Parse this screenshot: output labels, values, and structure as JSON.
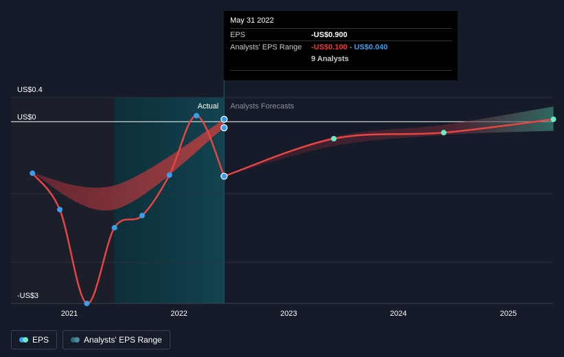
{
  "chart_data": {
    "type": "line",
    "title": "",
    "xlabel": "",
    "ylabel": "",
    "y_axis_labels": [
      "US$0.4",
      "US$0",
      "-US$3"
    ],
    "x_tick_labels": [
      "2021",
      "2022",
      "2023",
      "2024",
      "2025"
    ],
    "ylim": [
      -3.0,
      0.4
    ],
    "section_labels": {
      "actual": "Actual",
      "forecast": "Analysts Forecasts"
    },
    "series": [
      {
        "name": "EPS",
        "actual_points": [
          {
            "x": "2020-08-31",
            "y": -0.85
          },
          {
            "x": "2020-11-30",
            "y": -1.45
          },
          {
            "x": "2021-02-28",
            "y": -3.0
          },
          {
            "x": "2021-05-31",
            "y": -1.75
          },
          {
            "x": "2021-08-31",
            "y": -1.55
          },
          {
            "x": "2021-11-30",
            "y": -0.88
          },
          {
            "x": "2022-02-28",
            "y": 0.1
          },
          {
            "x": "2022-05-31",
            "y": -0.9
          }
        ],
        "forecast_points": [
          {
            "x": "2023-05-31",
            "y": -0.28
          },
          {
            "x": "2024-05-31",
            "y": -0.18
          },
          {
            "x": "2025-05-31",
            "y": 0.04
          }
        ]
      },
      {
        "name": "Analysts' EPS Range",
        "actual_range": [
          {
            "x": "2020-08-31",
            "low": -0.85,
            "high": -0.85
          },
          {
            "x": "2021-05-31",
            "low": -1.45,
            "high": -1.05
          },
          {
            "x": "2022-05-31",
            "low": -0.1,
            "high": 0.04
          }
        ],
        "forecast_range": [
          {
            "x": "2022-05-31",
            "low": -0.9,
            "high": -0.9
          },
          {
            "x": "2023-05-31",
            "low": -0.4,
            "high": -0.25
          },
          {
            "x": "2024-05-31",
            "low": -0.22,
            "high": -0.05
          },
          {
            "x": "2025-05-31",
            "low": -0.15,
            "high": 0.25
          }
        ]
      }
    ],
    "tooltip": {
      "date": "May 31 2022",
      "eps_label": "EPS",
      "eps_value": "-US$0.900",
      "range_label": "Analysts' EPS Range",
      "range_low": "-US$0.100",
      "range_sep": "-",
      "range_high": "US$0.040",
      "analysts": "9 Analysts"
    },
    "legend": [
      {
        "label": "EPS"
      },
      {
        "label": "Analysts' EPS Range"
      }
    ],
    "colors": {
      "background": "#151b28",
      "eps_line": "#e84545",
      "eps_dot_actual": "#3a9eef",
      "eps_dot_forecast": "#6cebc8",
      "range_fill": "#8a2d3a",
      "range_fill_forecast": "#4a9e8a",
      "actual_band": "#0f3a44",
      "past_band": "#1c1f28"
    }
  }
}
